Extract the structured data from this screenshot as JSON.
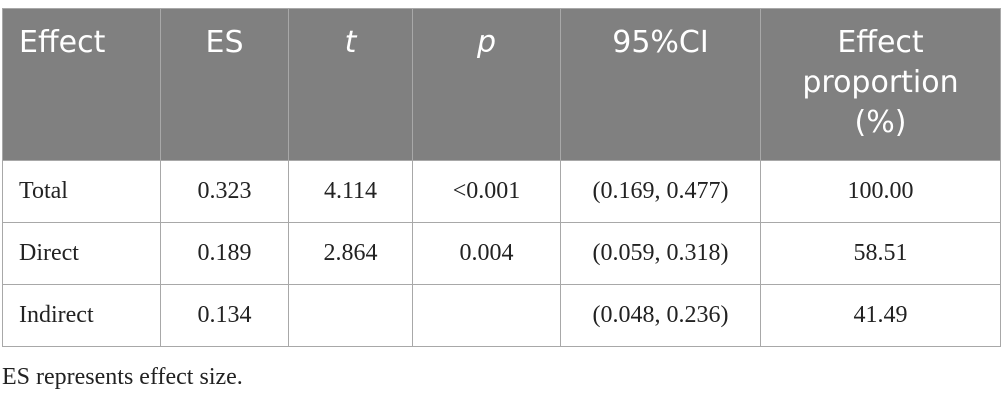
{
  "table": {
    "headers": [
      {
        "label": "Effect",
        "italic": false
      },
      {
        "label": "ES",
        "italic": false
      },
      {
        "label": "t",
        "italic": true
      },
      {
        "label": "p",
        "italic": true
      },
      {
        "label": "95%CI",
        "italic": false
      },
      {
        "label": "Effect proportion (%)",
        "italic": false
      }
    ],
    "rows": [
      {
        "effect": "Total",
        "es": "0.323",
        "t": "4.114",
        "p": "<0.001",
        "ci": "(0.169, 0.477)",
        "proportion": "100.00"
      },
      {
        "effect": "Direct",
        "es": "0.189",
        "t": "2.864",
        "p": "0.004",
        "ci": "(0.059, 0.318)",
        "proportion": "58.51"
      },
      {
        "effect": "Indirect",
        "es": "0.134",
        "t": "",
        "p": "",
        "ci": "(0.048, 0.236)",
        "proportion": "41.49"
      }
    ]
  },
  "footnote": "ES represents effect size.",
  "colors": {
    "header_background": "#808080",
    "header_text": "#ffffff",
    "border": "#a8a8a8",
    "body_text": "#222222"
  }
}
